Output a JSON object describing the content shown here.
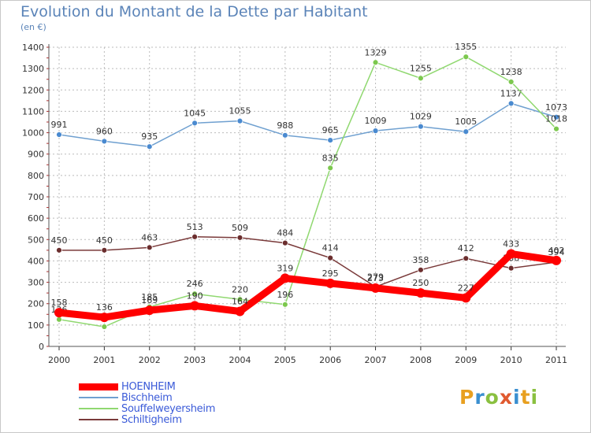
{
  "header": {
    "title": "Evolution du Montant de la Dette par Habitant",
    "subtitle": "(en €)"
  },
  "logo": {
    "letters": [
      "P",
      "r",
      "o",
      "x",
      "i",
      "t",
      "i"
    ],
    "colors": [
      "#e8a020",
      "#3a8fd0",
      "#8ac040",
      "#e05a30",
      "#3a8fd0",
      "#e8a020",
      "#8ac040"
    ]
  },
  "chart_data": {
    "type": "line",
    "title": "Evolution du Montant de la Dette par Habitant",
    "ylabel": "(en €)",
    "xlabel": "",
    "x": [
      "2000",
      "2001",
      "2002",
      "2003",
      "2004",
      "2005",
      "2006",
      "2007",
      "2008",
      "2009",
      "2010",
      "2011"
    ],
    "ylim": [
      0,
      1400
    ],
    "yticks": [
      0,
      100,
      200,
      300,
      400,
      500,
      600,
      700,
      800,
      900,
      1000,
      1100,
      1200,
      1300,
      1400
    ],
    "grid": true,
    "legend_position": "bottom-left",
    "series": [
      {
        "name": "Bischheim",
        "color": "#6fa0d0",
        "marker": "#4a8ad0",
        "values": [
          991,
          960,
          935,
          1045,
          1055,
          988,
          965,
          1009,
          1029,
          1005,
          1137,
          1073
        ]
      },
      {
        "name": "Souffelweyersheim",
        "color": "#90d870",
        "marker": "#7cc84e",
        "values": [
          126,
          92,
          185,
          246,
          220,
          196,
          835,
          1329,
          1255,
          1355,
          1238,
          1018
        ]
      },
      {
        "name": "Schiltigheim",
        "color": "#7a3a3a",
        "marker": "#6b2e2e",
        "values": [
          450,
          450,
          463,
          513,
          509,
          484,
          414,
          279,
          358,
          412,
          366,
          394
        ]
      },
      {
        "name": "HOENHEIM",
        "color": "#ff0000",
        "marker": "#ff0000",
        "values": [
          158,
          136,
          169,
          190,
          164,
          319,
          295,
          273,
          250,
          227,
          433,
          402
        ]
      }
    ],
    "labels": [
      {
        "series": "Bischheim",
        "text": [
          "991",
          "960",
          "935",
          "1045",
          "1055",
          "988",
          "965",
          "1009",
          "1029",
          "1005",
          "1137",
          "1073"
        ]
      },
      {
        "series": "Souffelweyersheim",
        "text": [
          "126",
          "92",
          "185",
          "246",
          "220",
          "196",
          "835",
          "1329",
          "1255",
          "1355",
          "1238",
          "1018"
        ]
      },
      {
        "series": "Schiltigheim",
        "text": [
          "450",
          "450",
          "463",
          "513",
          "509",
          "484",
          "414",
          "279",
          "358",
          "412",
          "366",
          "394"
        ]
      },
      {
        "series": "HOENHEIM",
        "text": [
          "158",
          "136",
          "169",
          "190",
          "164",
          "319",
          "295",
          "273",
          "250",
          "227",
          "433",
          "402"
        ]
      }
    ]
  },
  "legend": {
    "items": [
      {
        "name": "HOENHEIM",
        "color": "#ff0000",
        "text_color": "#3a5ad8",
        "thickness": 9
      },
      {
        "name": "Bischheim",
        "color": "#6fa0d0",
        "text_color": "#3a5ad8",
        "thickness": 2
      },
      {
        "name": "Souffelweyersheim",
        "color": "#90d870",
        "text_color": "#3a5ad8",
        "thickness": 2
      },
      {
        "name": "Schiltigheim",
        "color": "#7a3a3a",
        "text_color": "#3a5ad8",
        "thickness": 2
      }
    ]
  }
}
